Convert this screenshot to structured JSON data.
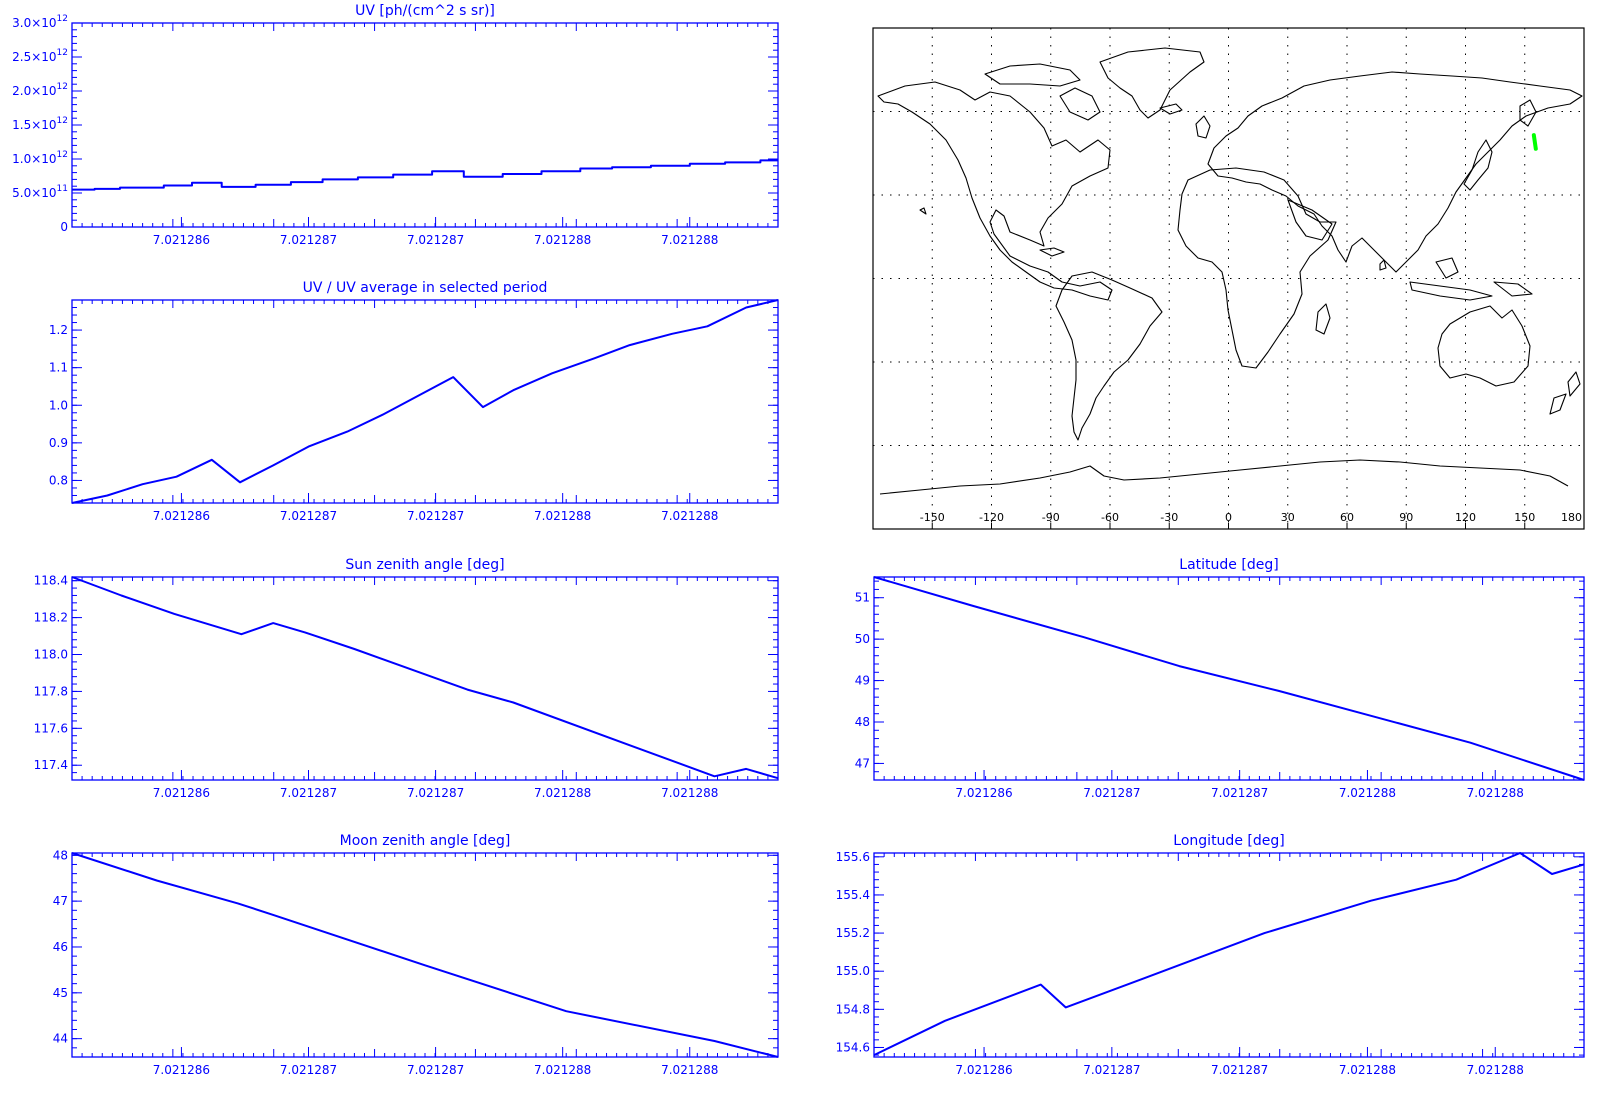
{
  "colors": {
    "line": "#0000ff",
    "axis": "#0000ff",
    "track": "#00ff00",
    "map": "#000000"
  },
  "chart_data": [
    {
      "id": "uv",
      "type": "line",
      "title": "UV [ph/(cm^2 s sr)]",
      "step": true,
      "xlim": [
        0,
        1
      ],
      "ylim": [
        0,
        3000000000000.0
      ],
      "x_tick_labels": [
        "7.021286",
        "7.021287",
        "7.021287",
        "7.021288",
        "7.021288"
      ],
      "y_ticks": [
        0,
        500000000000.0,
        1000000000000.0,
        1500000000000.0,
        2000000000000.0,
        2500000000000.0,
        3000000000000.0
      ],
      "y_tick_labels": [
        {
          "m": "0",
          "e": ""
        },
        {
          "m": "5.0×10",
          "e": "11"
        },
        {
          "m": "1.0×10",
          "e": "12"
        },
        {
          "m": "1.5×10",
          "e": "12"
        },
        {
          "m": "2.0×10",
          "e": "12"
        },
        {
          "m": "2.5×10",
          "e": "12"
        },
        {
          "m": "3.0×10",
          "e": "12"
        }
      ],
      "x": [
        0,
        0.032,
        0.068,
        0.13,
        0.17,
        0.212,
        0.26,
        0.31,
        0.355,
        0.405,
        0.455,
        0.51,
        0.555,
        0.61,
        0.665,
        0.72,
        0.765,
        0.82,
        0.875,
        0.925,
        0.975
      ],
      "values": [
        550000000000.0,
        560000000000.0,
        580000000000.0,
        610000000000.0,
        650000000000.0,
        590000000000.0,
        620000000000.0,
        660000000000.0,
        700000000000.0,
        730000000000.0,
        770000000000.0,
        820000000000.0,
        740000000000.0,
        780000000000.0,
        820000000000.0,
        860000000000.0,
        880000000000.0,
        900000000000.0,
        930000000000.0,
        950000000000.0,
        980000000000.0
      ]
    },
    {
      "id": "ratio",
      "type": "line",
      "title": "UV / UV average in selected period",
      "xlim": [
        0,
        1
      ],
      "ylim": [
        0.74,
        1.28
      ],
      "x_tick_labels": [
        "7.021286",
        "7.021287",
        "7.021287",
        "7.021288",
        "7.021288"
      ],
      "y_ticks": [
        0.8,
        0.9,
        1.0,
        1.1,
        1.2
      ],
      "y_tick_labels": [
        "0.8",
        "0.9",
        "1.0",
        "1.1",
        "1.2"
      ],
      "x": [
        0,
        0.05,
        0.1,
        0.148,
        0.198,
        0.238,
        0.285,
        0.335,
        0.39,
        0.44,
        0.495,
        0.54,
        0.582,
        0.625,
        0.68,
        0.74,
        0.79,
        0.85,
        0.9,
        0.955,
        1.0
      ],
      "values": [
        0.74,
        0.76,
        0.79,
        0.81,
        0.855,
        0.795,
        0.84,
        0.89,
        0.93,
        0.975,
        1.03,
        1.075,
        0.995,
        1.04,
        1.085,
        1.125,
        1.16,
        1.19,
        1.21,
        1.26,
        1.28
      ]
    },
    {
      "id": "sza",
      "type": "line",
      "title": "Sun zenith angle [deg]",
      "xlim": [
        0,
        1
      ],
      "ylim": [
        117.32,
        118.42
      ],
      "x_tick_labels": [
        "7.021286",
        "7.021287",
        "7.021287",
        "7.021288",
        "7.021288"
      ],
      "y_ticks": [
        117.4,
        117.6,
        117.8,
        118.0,
        118.2,
        118.4
      ],
      "y_tick_labels": [
        "117.4",
        "117.6",
        "117.8",
        "118.0",
        "118.2",
        "118.4"
      ],
      "x": [
        0,
        0.07,
        0.145,
        0.24,
        0.285,
        0.33,
        0.4,
        0.56,
        0.625,
        0.91,
        0.955,
        1.0
      ],
      "values": [
        118.42,
        118.32,
        118.22,
        118.11,
        118.17,
        118.12,
        118.03,
        117.81,
        117.74,
        117.34,
        117.38,
        117.33
      ]
    },
    {
      "id": "lat",
      "type": "line",
      "title": "Latitude [deg]",
      "xlim": [
        0,
        1
      ],
      "ylim": [
        46.6,
        51.5
      ],
      "x_tick_labels": [
        "7.021286",
        "7.021287",
        "7.021287",
        "7.021288",
        "7.021288"
      ],
      "y_ticks": [
        47,
        48,
        49,
        50,
        51
      ],
      "y_tick_labels": [
        "47",
        "48",
        "49",
        "50",
        "51"
      ],
      "x": [
        0,
        0.14,
        0.295,
        0.43,
        0.57,
        0.7,
        0.84,
        1.0
      ],
      "values": [
        51.5,
        50.8,
        50.05,
        49.35,
        48.75,
        48.15,
        47.5,
        46.6
      ]
    },
    {
      "id": "mza",
      "type": "line",
      "title": "Moon zenith angle [deg]",
      "xlim": [
        0,
        1
      ],
      "ylim": [
        43.6,
        48.05
      ],
      "x_tick_labels": [
        "7.021286",
        "7.021287",
        "7.021287",
        "7.021288",
        "7.021288"
      ],
      "y_ticks": [
        44,
        45,
        46,
        47,
        48
      ],
      "y_tick_labels": [
        "44",
        "45",
        "46",
        "47",
        "48"
      ],
      "x": [
        0,
        0.12,
        0.235,
        0.285,
        0.5,
        0.7,
        0.91,
        1.0
      ],
      "values": [
        48.05,
        47.45,
        46.95,
        46.7,
        45.6,
        44.6,
        43.95,
        43.6
      ]
    },
    {
      "id": "lon",
      "type": "line",
      "title": "Longitude [deg]",
      "xlim": [
        0,
        1
      ],
      "ylim": [
        154.55,
        155.62
      ],
      "x_tick_labels": [
        "7.021286",
        "7.021287",
        "7.021287",
        "7.021288",
        "7.021288"
      ],
      "y_ticks": [
        154.6,
        154.8,
        155.0,
        155.2,
        155.4,
        155.6
      ],
      "y_tick_labels": [
        "154.6",
        "154.8",
        "155.0",
        "155.2",
        "155.4",
        "155.6"
      ],
      "x": [
        0,
        0.1,
        0.235,
        0.27,
        0.4,
        0.55,
        0.7,
        0.82,
        0.91,
        0.955,
        1.0
      ],
      "values": [
        154.56,
        154.74,
        154.93,
        154.81,
        154.99,
        155.2,
        155.37,
        155.48,
        155.62,
        155.51,
        155.56
      ]
    }
  ],
  "map": {
    "lon_tick_labels": [
      "-150",
      "-120",
      "-90",
      "-60",
      "-30",
      "0",
      "30",
      "60",
      "90",
      "120",
      "150",
      "180"
    ],
    "lon_ticks": [
      -150,
      -120,
      -90,
      -60,
      -30,
      0,
      30,
      60,
      90,
      120,
      150,
      180
    ],
    "lon_range": [
      -180,
      180
    ],
    "lat_range": [
      -90,
      90
    ],
    "grid_lon_step": 30,
    "grid_lat_step": 30,
    "track": [
      [
        154.6,
        51.5
      ],
      [
        155.6,
        46.6
      ]
    ]
  }
}
